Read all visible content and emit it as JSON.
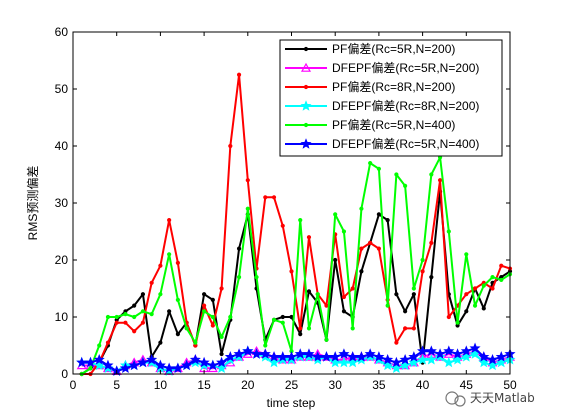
{
  "chart_data": {
    "type": "line",
    "title": "",
    "xlabel": "time step",
    "ylabel": "RMS预测偏差",
    "xlim": [
      0,
      50
    ],
    "ylim": [
      0,
      60
    ],
    "xticks": [
      0,
      5,
      10,
      15,
      20,
      25,
      30,
      35,
      40,
      45,
      50
    ],
    "yticks": [
      0,
      10,
      20,
      30,
      40,
      50,
      60
    ],
    "grid": false,
    "legend_position": "top-right",
    "x": [
      1,
      2,
      3,
      4,
      5,
      6,
      7,
      8,
      9,
      10,
      11,
      12,
      13,
      14,
      15,
      16,
      17,
      18,
      19,
      20,
      21,
      22,
      23,
      24,
      25,
      26,
      27,
      28,
      29,
      30,
      31,
      32,
      33,
      34,
      35,
      36,
      37,
      38,
      39,
      40,
      41,
      42,
      43,
      44,
      45,
      46,
      47,
      48,
      49,
      50
    ],
    "series": [
      {
        "name": "PF偏差(Rc=5R,N=200)",
        "color": "#000000",
        "marker": "dot",
        "values": [
          0,
          1,
          2,
          5,
          9.5,
          11,
          12,
          14,
          3,
          5.5,
          11,
          7,
          9,
          5,
          14,
          13,
          3.5,
          9.5,
          22,
          28,
          15,
          6,
          9.5,
          10,
          10,
          7,
          14.5,
          12.5,
          6,
          20,
          11,
          10,
          18,
          23,
          28,
          27,
          14,
          11,
          14,
          2,
          17,
          32,
          14,
          8.5,
          11,
          15,
          11.5,
          16,
          17,
          18
        ]
      },
      {
        "name": "DFEPF偏差(Rc=5R,N=200)",
        "color": "#ff00ff",
        "marker": "triangle",
        "values": [
          1.5,
          1.5,
          1.5,
          1,
          0.5,
          1.5,
          2,
          2.5,
          2,
          1,
          0.5,
          1,
          2,
          2.5,
          1,
          1,
          1.5,
          2,
          3,
          3.5,
          4,
          3.5,
          3,
          2.5,
          2.5,
          3,
          3,
          3.5,
          3,
          2.5,
          2.5,
          3,
          3,
          3,
          2.5,
          2,
          1.5,
          1.5,
          2,
          3,
          3.5,
          3,
          3.5,
          3,
          3.5,
          4,
          3,
          2,
          2.5,
          3
        ]
      },
      {
        "name": "PF偏差(Rc=8R,N=200)",
        "color": "#ff0000",
        "marker": "dot",
        "values": [
          0,
          0,
          2,
          5.5,
          9,
          9,
          7.5,
          9,
          16,
          19,
          27,
          19.5,
          9,
          5,
          12,
          8.5,
          15,
          40,
          52.5,
          34,
          18.5,
          31,
          31,
          26,
          18,
          8,
          24,
          14,
          12,
          24.5,
          13.5,
          15,
          22,
          23,
          22,
          13,
          5.5,
          8,
          8,
          18,
          23,
          34,
          10,
          12,
          14,
          15,
          16,
          15,
          19,
          18.5
        ]
      },
      {
        "name": "DFEPF偏差(Rc=8R,N=200)",
        "color": "#00ffff",
        "marker": "star",
        "values": [
          2,
          2,
          1.5,
          1,
          0.5,
          1.5,
          1.5,
          2,
          2,
          1,
          0.5,
          1,
          1.5,
          2,
          1.5,
          1.5,
          1,
          2.5,
          3,
          4,
          3.5,
          3,
          2,
          2.5,
          2.5,
          3,
          3,
          2.5,
          3,
          2,
          2,
          2,
          2.5,
          3,
          2.5,
          1.5,
          1,
          1.5,
          2,
          2.5,
          2.5,
          3,
          2,
          2.5,
          3,
          3.5,
          2,
          1.5,
          2,
          2.5
        ]
      },
      {
        "name": "PF偏差(Rc=5R,N=400)",
        "color": "#00ff00",
        "marker": "dot",
        "values": [
          0,
          1,
          5,
          10,
          10,
          10.5,
          10,
          11,
          10.5,
          14,
          21,
          13,
          8,
          5.5,
          11,
          10,
          6.5,
          10,
          17,
          29,
          17,
          5,
          9.5,
          9,
          4,
          27,
          8,
          14,
          6,
          28,
          25,
          8,
          29,
          37,
          36,
          12,
          35,
          33,
          15,
          20,
          35,
          38,
          25,
          9,
          21,
          12,
          15.5,
          17,
          16.5,
          17.5
        ]
      },
      {
        "name": "DFEPF偏差(Rc=5R,N=400)",
        "color": "#0000ff",
        "marker": "star",
        "values": [
          2,
          2,
          2.5,
          1.5,
          0.5,
          1,
          1.5,
          2,
          2.5,
          1.5,
          1,
          1,
          1.5,
          2.5,
          2,
          1.5,
          2,
          3,
          3.5,
          4,
          3.5,
          3.5,
          3,
          3,
          3,
          3.5,
          3.5,
          3,
          3,
          3,
          3.5,
          3,
          3,
          3.5,
          3,
          2.5,
          2,
          2.5,
          3,
          4,
          4,
          3.5,
          4,
          3.5,
          4,
          4.5,
          3,
          2.5,
          3,
          3.5
        ]
      }
    ]
  },
  "watermark": {
    "text": "天天Matlab"
  }
}
